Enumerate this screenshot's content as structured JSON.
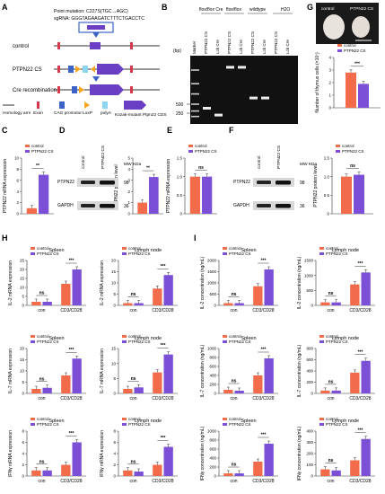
{
  "colors": {
    "control": "#f26b4a",
    "cs": "#7b4fd6",
    "construct_purple": "#6b3fc4",
    "exon_red": "#d6384a",
    "loxp_orange": "#f5a623",
    "polya_blue": "#8ad7ef",
    "promoter_blue": "#3d63c6"
  },
  "panels": {
    "A": {
      "letter": "A",
      "point_mutation": "Point mutation: C227S(TGC→AGC)",
      "sgrna": "sgRNA: GGGTAGAAGATCTTTCTGACCTC",
      "rows": [
        "control",
        "PTPN22 CS",
        "Cre recombination"
      ],
      "legend": [
        "Homology arm",
        "Exon",
        "CAG promotor",
        "LoxP",
        "polyA",
        "Kozak-mutant Ptpn22 CDS"
      ]
    },
    "B": {
      "letter": "B",
      "groups": [
        "flox/flox Cre",
        "flox/flox",
        "wildtype",
        "H2O"
      ],
      "lanes": [
        "Marker",
        "PTPN22 CS",
        "Lck Cre",
        "PTPN22 CS",
        "Lck Cre",
        "PTPN22 CS",
        "Lck Cre",
        "PTPN22 CS",
        "Lck Cre"
      ],
      "ylabel": "(bp)",
      "ticks": [
        "500",
        "250"
      ]
    },
    "G": {
      "letter": "G",
      "photo_labels": [
        "control",
        "PTPN22 CS"
      ],
      "ylabel": "Number of thymus cells (×10⁷)",
      "sig": "***"
    },
    "C": {
      "letter": "C",
      "ylabel": "PTPN22 mRNA expression",
      "sig": "**"
    },
    "D": {
      "letter": "D",
      "lanes": [
        "control",
        "PTPN22 CS"
      ],
      "mw_header": "MW KDa",
      "blots": [
        "PTPN22",
        "GAPDH"
      ],
      "mw": [
        "98",
        "36"
      ],
      "ylabel": "PTPN22 protein level",
      "sig": "**"
    },
    "E": {
      "letter": "E",
      "ylabel": "PTPN22 mRNA expression",
      "sig": "ns"
    },
    "F": {
      "letter": "F",
      "lanes": [
        "control",
        "PTPN22 CS"
      ],
      "mw_header": "MW KDa",
      "blots": [
        "PTPN22",
        "GAPDH"
      ],
      "mw": [
        "98",
        "36"
      ],
      "ylabel": "PTPN22 protein level",
      "sig": "ns"
    },
    "H": {
      "letter": "H"
    },
    "I": {
      "letter": "I"
    }
  },
  "legend_labels": [
    "control",
    "PTPN22 CS"
  ],
  "chart_data": [
    {
      "id": "G",
      "type": "bar",
      "categories": [
        ""
      ],
      "series": [
        {
          "name": "control",
          "values": [
            2.8
          ]
        },
        {
          "name": "PTPN22 CS",
          "values": [
            1.9
          ]
        }
      ],
      "ylim": [
        0,
        4
      ],
      "yticks": [
        "0",
        "1",
        "2",
        "3",
        "4"
      ]
    },
    {
      "id": "C",
      "type": "bar",
      "categories": [
        ""
      ],
      "series": [
        {
          "name": "control",
          "values": [
            1.0
          ]
        },
        {
          "name": "PTPN22 CS",
          "values": [
            7.0
          ]
        }
      ],
      "ylim": [
        0,
        10
      ],
      "yticks": [
        "0",
        "2",
        "4",
        "6",
        "8",
        "10"
      ]
    },
    {
      "id": "D",
      "type": "bar",
      "categories": [
        ""
      ],
      "series": [
        {
          "name": "control",
          "values": [
            1.0
          ]
        },
        {
          "name": "PTPN22 CS",
          "values": [
            3.3
          ]
        }
      ],
      "ylim": [
        0,
        5
      ],
      "yticks": [
        "0",
        "1",
        "2",
        "3",
        "4",
        "5"
      ]
    },
    {
      "id": "E",
      "type": "bar",
      "categories": [
        ""
      ],
      "series": [
        {
          "name": "control",
          "values": [
            1.0
          ]
        },
        {
          "name": "PTPN22 CS",
          "values": [
            1.0
          ]
        }
      ],
      "ylim": [
        0,
        1.5
      ],
      "yticks": [
        "0",
        "0.5",
        "1.0",
        "1.5"
      ]
    },
    {
      "id": "F",
      "type": "bar",
      "categories": [
        ""
      ],
      "series": [
        {
          "name": "control",
          "values": [
            1.0
          ]
        },
        {
          "name": "PTPN22 CS",
          "values": [
            1.05
          ]
        }
      ],
      "ylim": [
        0,
        1.5
      ],
      "yticks": [
        "0",
        "0.5",
        "1.0",
        "1.5"
      ]
    },
    {
      "id": "H1",
      "title": "Spleen",
      "ylabel": "IL-2 mRNA expression",
      "type": "bar",
      "categories": [
        "con",
        "CD3/CD28"
      ],
      "series": [
        {
          "name": "control",
          "values": [
            2,
            12
          ]
        },
        {
          "name": "PTPN22 CS",
          "values": [
            2,
            20
          ]
        }
      ],
      "ylim": [
        0,
        25
      ],
      "yticks": [
        "0",
        "5",
        "10",
        "15",
        "20",
        "25"
      ],
      "sigs": [
        "ns",
        "***"
      ]
    },
    {
      "id": "H2",
      "title": "Lymph node",
      "ylabel": "IL-2 mRNA expression",
      "type": "bar",
      "categories": [
        "con",
        "CD3/CD28"
      ],
      "series": [
        {
          "name": "control",
          "values": [
            1,
            7.5
          ]
        },
        {
          "name": "PTPN22 CS",
          "values": [
            1,
            13.5
          ]
        }
      ],
      "ylim": [
        0,
        20
      ],
      "yticks": [
        "0",
        "5",
        "10",
        "15",
        "20"
      ],
      "sigs": [
        "ns",
        "***"
      ]
    },
    {
      "id": "H3",
      "title": "Spleen",
      "ylabel": "IL-7 mRNA expression",
      "type": "bar",
      "categories": [
        "con",
        "CD3/CD28"
      ],
      "series": [
        {
          "name": "control",
          "values": [
            2,
            8
          ]
        },
        {
          "name": "PTPN22 CS",
          "values": [
            2.5,
            15.5
          ]
        }
      ],
      "ylim": [
        0,
        20
      ],
      "yticks": [
        "0",
        "5",
        "10",
        "15",
        "20"
      ],
      "sigs": [
        "ns",
        "***"
      ]
    },
    {
      "id": "H4",
      "title": "Lymph node",
      "ylabel": "IL-7 mRNA expression",
      "type": "bar",
      "categories": [
        "con",
        "CD3/CD28"
      ],
      "series": [
        {
          "name": "control",
          "values": [
            1.5,
            7
          ]
        },
        {
          "name": "PTPN22 CS",
          "values": [
            2,
            13
          ]
        }
      ],
      "ylim": [
        0,
        15
      ],
      "yticks": [
        "0",
        "5",
        "10",
        "15"
      ],
      "sigs": [
        "ns",
        "***"
      ]
    },
    {
      "id": "H5",
      "title": "Spleen",
      "ylabel": "IFNγ mRNA expression",
      "type": "bar",
      "categories": [
        "con",
        "CD3/CD28"
      ],
      "series": [
        {
          "name": "control",
          "values": [
            1,
            2
          ]
        },
        {
          "name": "PTPN22 CS",
          "values": [
            1,
            6
          ]
        }
      ],
      "ylim": [
        0,
        8
      ],
      "yticks": [
        "0",
        "2",
        "4",
        "6",
        "8"
      ],
      "sigs": [
        "ns",
        "***"
      ]
    },
    {
      "id": "H6",
      "title": "Lymph node",
      "ylabel": "IFNγ mRNA expression",
      "type": "bar",
      "categories": [
        "con",
        "CD3/CD28"
      ],
      "series": [
        {
          "name": "control",
          "values": [
            1,
            2
          ]
        },
        {
          "name": "PTPN22 CS",
          "values": [
            0.8,
            5.2
          ]
        }
      ],
      "ylim": [
        0,
        8
      ],
      "yticks": [
        "0",
        "2",
        "4",
        "6",
        "8"
      ],
      "sigs": [
        "ns",
        "***"
      ]
    },
    {
      "id": "I1",
      "title": "Spleen",
      "ylabel": "IL-2 concentration (ng/mL)",
      "type": "bar",
      "categories": [
        "con",
        "CD3/CD28"
      ],
      "series": [
        {
          "name": "control",
          "values": [
            100,
            850
          ]
        },
        {
          "name": "PTPN22 CS",
          "values": [
            100,
            1600
          ]
        }
      ],
      "ylim": [
        0,
        2000
      ],
      "yticks": [
        "0",
        "500",
        "1000",
        "1500",
        "2000"
      ],
      "sigs": [
        "ns",
        "***"
      ]
    },
    {
      "id": "I2",
      "title": "Lymph node",
      "ylabel": "IL-2 concentration (ng/mL)",
      "type": "bar",
      "categories": [
        "con",
        "CD3/CD28"
      ],
      "series": [
        {
          "name": "control",
          "values": [
            100,
            700
          ]
        },
        {
          "name": "PTPN22 CS",
          "values": [
            100,
            1100
          ]
        }
      ],
      "ylim": [
        0,
        1500
      ],
      "yticks": [
        "0",
        "500",
        "1000",
        "1500"
      ],
      "sigs": [
        "ns",
        "***"
      ]
    },
    {
      "id": "I3",
      "title": "Spleen",
      "ylabel": "IL-7 concentration (ng/mL)",
      "type": "bar",
      "categories": [
        "con",
        "CD3/CD28"
      ],
      "series": [
        {
          "name": "control",
          "values": [
            80,
            400
          ]
        },
        {
          "name": "PTPN22 CS",
          "values": [
            60,
            780
          ]
        }
      ],
      "ylim": [
        0,
        1000
      ],
      "yticks": [
        "0",
        "200",
        "400",
        "600",
        "800",
        "1000"
      ],
      "sigs": [
        "ns",
        "***"
      ]
    },
    {
      "id": "I4",
      "title": "Lymph node",
      "ylabel": "IL-7 concentration (ng/mL)",
      "type": "bar",
      "categories": [
        "con",
        "CD3/CD28"
      ],
      "series": [
        {
          "name": "control",
          "values": [
            50,
            370
          ]
        },
        {
          "name": "PTPN22 CS",
          "values": [
            50,
            580
          ]
        }
      ],
      "ylim": [
        0,
        800
      ],
      "yticks": [
        "0",
        "200",
        "400",
        "600",
        "800"
      ],
      "sigs": [
        "ns",
        "***"
      ]
    },
    {
      "id": "I5",
      "title": "Spleen",
      "ylabel": "IFNγ concentration (ng/mL)",
      "type": "bar",
      "categories": [
        "con",
        "CD3/CD28"
      ],
      "series": [
        {
          "name": "control",
          "values": [
            60,
            320
          ]
        },
        {
          "name": "PTPN22 CS",
          "values": [
            60,
            720
          ]
        }
      ],
      "ylim": [
        0,
        1000
      ],
      "yticks": [
        "0",
        "200",
        "400",
        "600",
        "800",
        "1000"
      ],
      "sigs": [
        "ns",
        "***"
      ]
    },
    {
      "id": "I6",
      "title": "Lymph node",
      "ylabel": "IFNγ concentration (ng/mL)",
      "type": "bar",
      "categories": [
        "con",
        "CD3/CD28"
      ],
      "series": [
        {
          "name": "control",
          "values": [
            60,
            140
          ]
        },
        {
          "name": "PTPN22 CS",
          "values": [
            50,
            330
          ]
        }
      ],
      "ylim": [
        0,
        400
      ],
      "yticks": [
        "0",
        "100",
        "200",
        "300",
        "400"
      ],
      "sigs": [
        "ns",
        "***"
      ]
    }
  ]
}
